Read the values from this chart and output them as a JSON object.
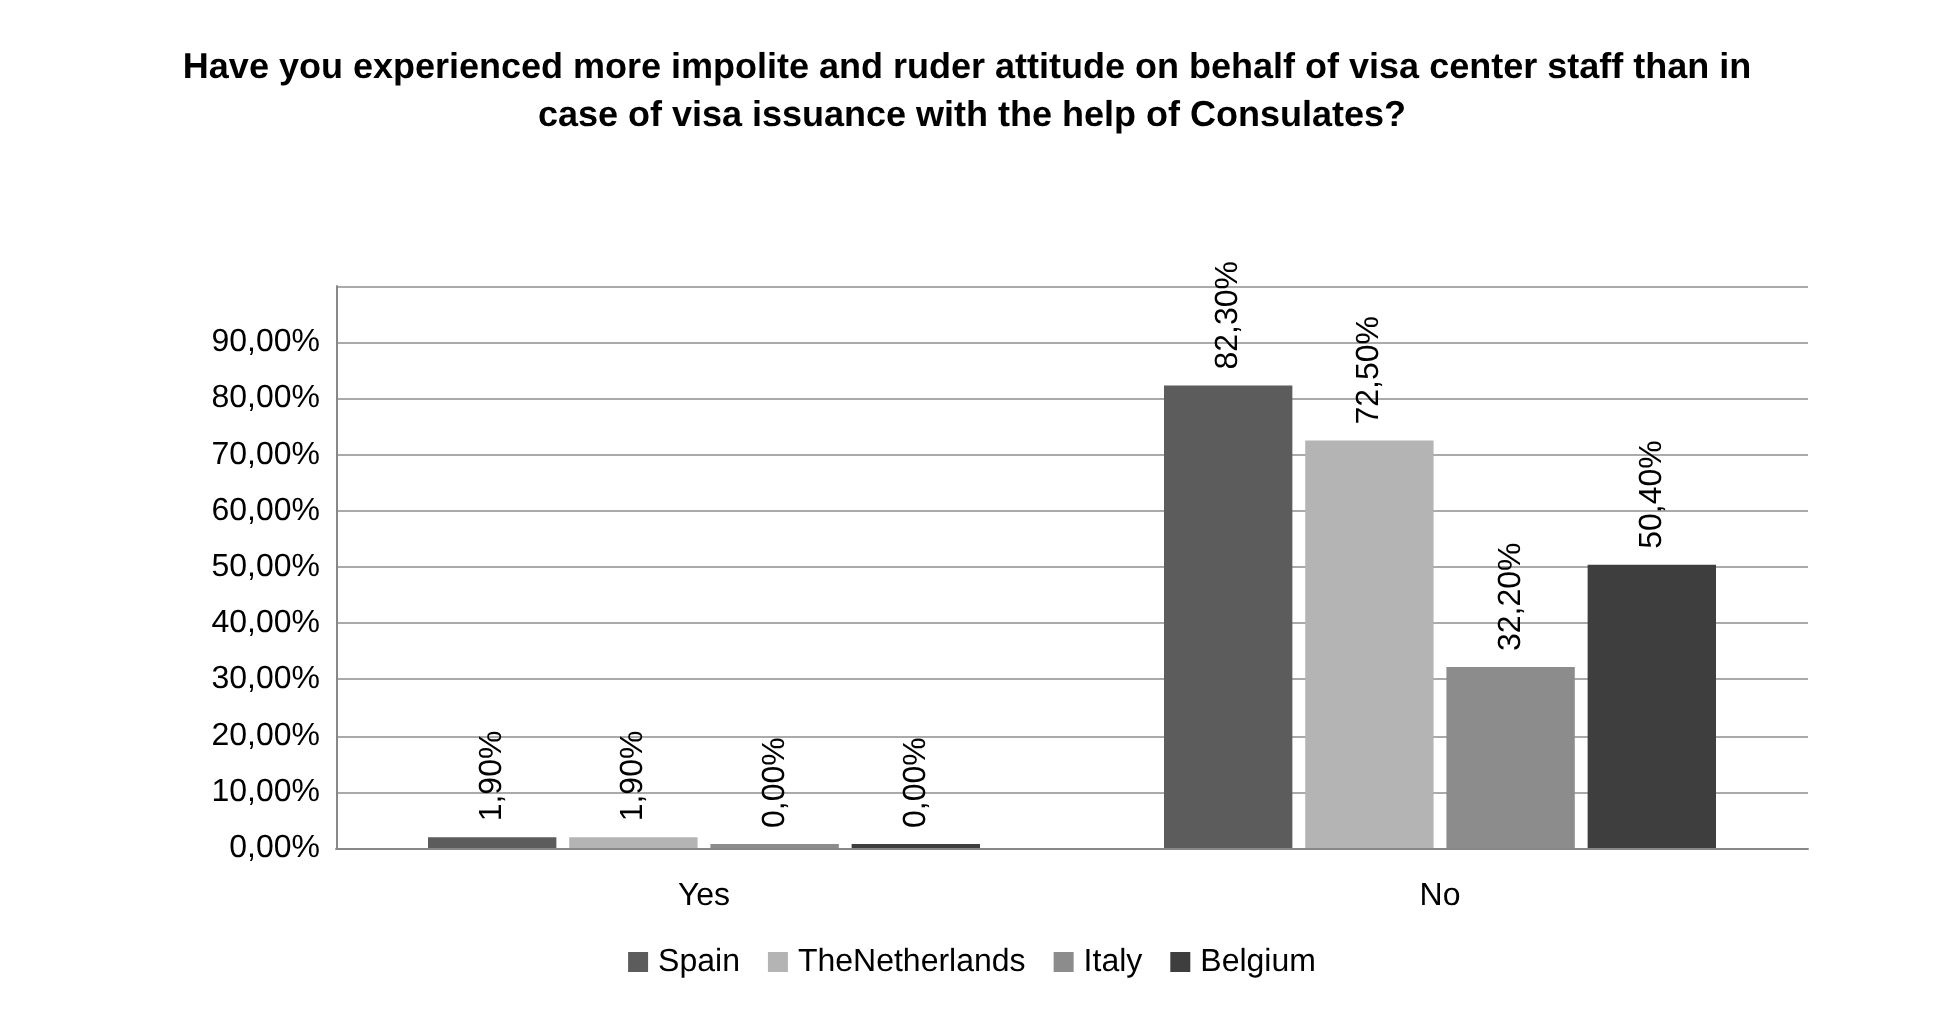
{
  "chart_data": {
    "type": "bar",
    "title": "Have you experienced more impolite and ruder attitude on behalf of visa center staff than in case of visa issuance with the help of Consulates?",
    "categories": [
      "Yes",
      "No"
    ],
    "series": [
      {
        "name": "Spain",
        "color": "#5c5c5c",
        "values": [
          1.9,
          82.3
        ],
        "value_labels": [
          "1,90%",
          "82,30%"
        ]
      },
      {
        "name": "TheNetherlands",
        "color": "#b4b4b4",
        "values": [
          1.9,
          72.5
        ],
        "value_labels": [
          "1,90%",
          "72,50%"
        ]
      },
      {
        "name": "Italy",
        "color": "#8c8c8c",
        "values": [
          0,
          32.2
        ],
        "value_labels": [
          "0,00%",
          "32,20%"
        ]
      },
      {
        "name": "Belgium",
        "color": "#3e3e3e",
        "values": [
          0,
          50.4
        ],
        "value_labels": [
          "0,00%",
          "50,40%"
        ]
      }
    ],
    "ylim": [
      0,
      100
    ],
    "yticks": [
      {
        "value": 0,
        "label": "0,00%"
      },
      {
        "value": 10,
        "label": "10,00%"
      },
      {
        "value": 20,
        "label": "20,00%"
      },
      {
        "value": 30,
        "label": "30,00%"
      },
      {
        "value": 40,
        "label": "40,00%"
      },
      {
        "value": 50,
        "label": "50,00%"
      },
      {
        "value": 60,
        "label": "60,00%"
      },
      {
        "value": 70,
        "label": "70,00%"
      },
      {
        "value": 80,
        "label": "80,00%"
      },
      {
        "value": 90,
        "label": "90,00%"
      },
      {
        "value": 100,
        "label": null
      }
    ],
    "grid": "y",
    "legend": "bottom"
  }
}
